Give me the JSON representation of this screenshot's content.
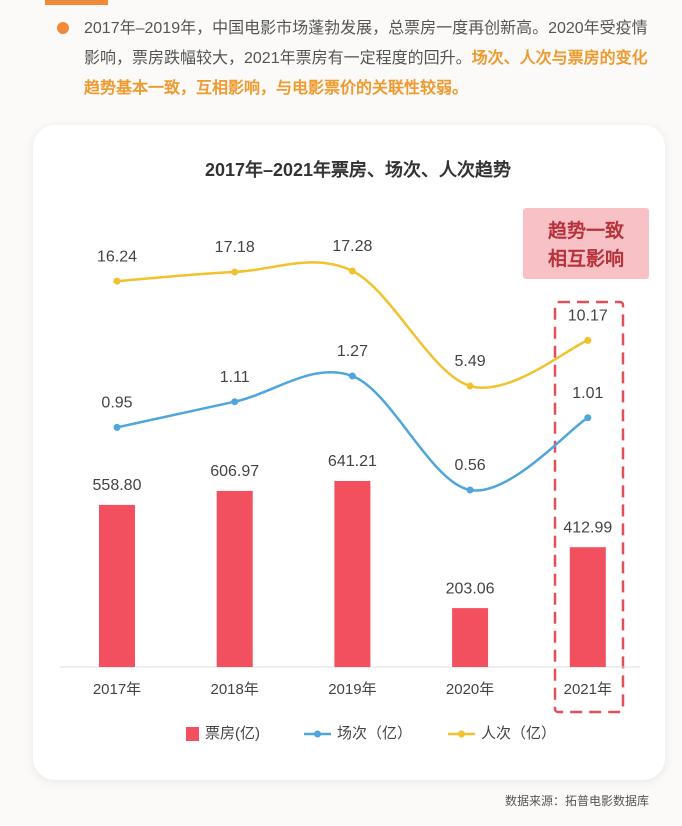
{
  "intro": {
    "plain": "2017年–2019年，中国电影市场蓬勃发展，总票房一度再创新高。2020年受疫情影响，票房跌幅较大，2021年票房有一定程度的回升。",
    "highlight": "场次、人次与票房的变化趋势基本一致，互相影响，与电影票价的关联性较弱。"
  },
  "chart_data": {
    "type": "bar",
    "title": "2017年–2021年票房、场次、人次趋势",
    "categories": [
      "2017年",
      "2018年",
      "2019年",
      "2020年",
      "2021年"
    ],
    "series": [
      {
        "name": "票房(亿)",
        "type": "bar",
        "color": "#f2505e",
        "values": [
          558.8,
          606.97,
          641.21,
          203.06,
          412.99
        ],
        "value_labels": [
          "558.80",
          "606.97",
          "641.21",
          "203.06",
          "412.99"
        ]
      },
      {
        "name": "场次（亿）",
        "type": "line",
        "color": "#4ea6dc",
        "values": [
          0.95,
          1.11,
          1.27,
          0.56,
          1.01
        ]
      },
      {
        "name": "人次（亿）",
        "type": "line",
        "color": "#f2c12e",
        "values": [
          16.24,
          17.18,
          17.28,
          5.49,
          10.17
        ]
      }
    ],
    "annotation": [
      "趋势一致",
      "相互影响"
    ]
  },
  "source": "数据来源：拓普电影数据库"
}
